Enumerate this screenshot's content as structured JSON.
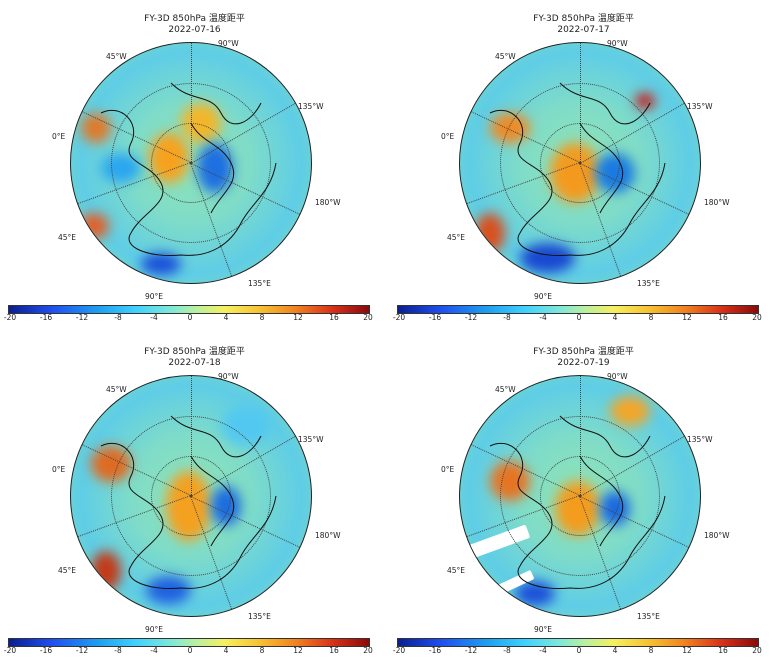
{
  "panels": [
    {
      "title": "FY-3D 850hPa 温度距平",
      "date": "2022-07-16"
    },
    {
      "title": "FY-3D 850hPa 温度距平",
      "date": "2022-07-17"
    },
    {
      "title": "FY-3D 850hPa 温度距平",
      "date": "2022-07-18"
    },
    {
      "title": "FY-3D 850hPa 温度距平",
      "date": "2022-07-19"
    }
  ],
  "map_labels": {
    "w45": "45°W",
    "w90": "90°W",
    "w135": "135°W",
    "w180": "180°W",
    "e0": "0°E",
    "e45": "45°E",
    "e90": "90°E",
    "e135": "135°E"
  },
  "colorbar": {
    "ticks": [
      "-20",
      "-16",
      "-12",
      "-8",
      "-4",
      "0",
      "4",
      "8",
      "12",
      "16",
      "20"
    ],
    "colors": {
      "min": "#0a1f8f",
      "zero": "#b9f0a0",
      "max": "#8a0a0a"
    }
  }
}
